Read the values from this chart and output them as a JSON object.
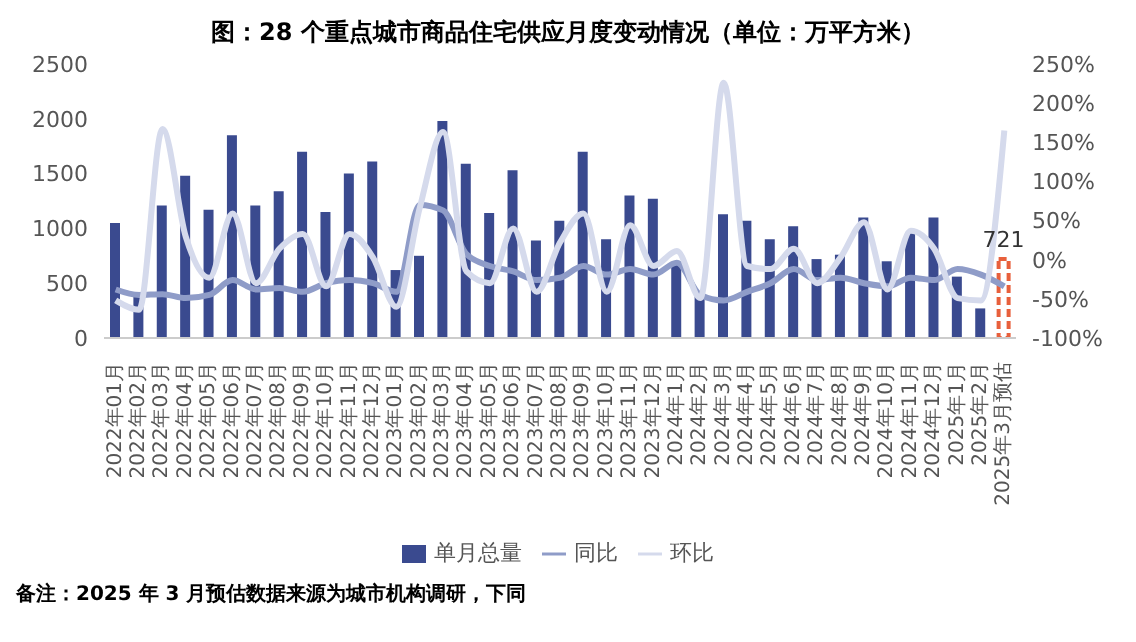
{
  "chart_data": {
    "type": "bar",
    "title": "图：28 个重点城市商品住宅供应月度变动情况（单位：万平方米）",
    "categories": [
      "2022年01月",
      "2022年02月",
      "2022年03月",
      "2022年04月",
      "2022年05月",
      "2022年06月",
      "2022年07月",
      "2022年08月",
      "2022年09月",
      "2022年10月",
      "2022年11月",
      "2022年12月",
      "2023年01月",
      "2023年02月",
      "2023年03月",
      "2023年04月",
      "2023年05月",
      "2023年06月",
      "2023年07月",
      "2023年08月",
      "2023年09月",
      "2023年10月",
      "2023年11月",
      "2023年12月",
      "2024年1月",
      "2024年2月",
      "2024年3月",
      "2024年4月",
      "2024年5月",
      "2024年6月",
      "2024年7月",
      "2024年8月",
      "2024年9月",
      "2024年10月",
      "2024年11月",
      "2024年12月",
      "2025年1月",
      "2025年2月",
      "2025年3月预估"
    ],
    "series": [
      {
        "name": "单月总量",
        "color": "#3a4a8f",
        "colors": [
          "#3a4a8f",
          "#3a4a8f",
          "#3a4a8f",
          "#3a4a8f",
          "#3a4a8f",
          "#3a4a8f",
          "#3a4a8f",
          "#3a4a8f",
          "#3a4a8f",
          "#3a4a8f",
          "#3a4a8f",
          "#3a4a8f",
          "#3a4a8f",
          "#3a4a8f",
          "#3a4a8f",
          "#3a4a8f",
          "#3a4a8f",
          "#3a4a8f",
          "#3a4a8f",
          "#3a4a8f",
          "#3a4a8f",
          "#3a4a8f",
          "#3a4a8f",
          "#3a4a8f",
          "#3a4a8f",
          "#3a4a8f",
          "#3a4a8f",
          "#3a4a8f",
          "#3a4a8f",
          "#3a4a8f",
          "#3a4a8f",
          "#3a4a8f",
          "#3a4a8f",
          "#3a4a8f",
          "#3a4a8f",
          "#3a4a8f",
          "#3a4a8f",
          "#3a4a8f",
          "#e8603c"
        ],
        "values": [
          1050,
          420,
          1210,
          1480,
          1170,
          1850,
          1210,
          1340,
          1700,
          1150,
          1500,
          1610,
          620,
          750,
          1980,
          1590,
          1140,
          1530,
          890,
          1070,
          1700,
          900,
          1300,
          1270,
          670,
          380,
          1130,
          1070,
          900,
          1020,
          720,
          760,
          1100,
          700,
          960,
          1100,
          560,
          270,
          721
        ],
        "value_labels": [
          null,
          null,
          null,
          null,
          null,
          null,
          null,
          null,
          null,
          null,
          null,
          null,
          null,
          null,
          null,
          null,
          null,
          null,
          null,
          null,
          null,
          null,
          null,
          null,
          null,
          null,
          null,
          null,
          null,
          null,
          null,
          null,
          null,
          null,
          null,
          null,
          null,
          null,
          "721"
        ]
      },
      {
        "name": "同比",
        "type": "line",
        "axis": "y2",
        "color": "#8f9cc8",
        "values": [
          -38,
          -45,
          -44,
          -49,
          -45,
          -26,
          -38,
          -36,
          -41,
          -30,
          -26,
          -30,
          -41,
          70,
          63,
          7,
          -8,
          -15,
          -26,
          -23,
          -8,
          -19,
          -12,
          -19,
          -4,
          -45,
          -52,
          -41,
          -30,
          -12,
          -26,
          -23,
          -30,
          -34,
          -23,
          -26,
          -12,
          -19,
          -34
        ]
      },
      {
        "name": "环比",
        "type": "line",
        "axis": "y2",
        "color": "#d5daec",
        "values": [
          -52,
          -64,
          167,
          29,
          -23,
          59,
          -30,
          14,
          33,
          -34,
          33,
          3,
          -60,
          66,
          163,
          -15,
          -30,
          40,
          -41,
          22,
          59,
          -41,
          44,
          -8,
          11,
          -49,
          226,
          -8,
          -12,
          14,
          -30,
          3,
          48,
          -38,
          37,
          14,
          -49,
          -52,
          165
        ]
      }
    ],
    "ylim": [
      0,
      2500
    ],
    "yticks": [
      0,
      500,
      1000,
      1500,
      2000,
      2500
    ],
    "y2lim": [
      -100,
      250
    ],
    "y2ticks": [
      {
        "value": -100,
        "label": "-100%"
      },
      {
        "value": -50,
        "label": "-50%"
      },
      {
        "value": 0,
        "label": "0%"
      },
      {
        "value": 50,
        "label": "50%"
      },
      {
        "value": 100,
        "label": "100%"
      },
      {
        "value": 150,
        "label": "150%"
      },
      {
        "value": 200,
        "label": "200%"
      },
      {
        "value": 250,
        "label": "250%"
      }
    ],
    "grid": false,
    "legend": "bottom",
    "marker": "none",
    "line_style": "solid",
    "annotations": [
      "备注：2025 年 3 月预估数据来源为城市机构调研，下同"
    ]
  }
}
